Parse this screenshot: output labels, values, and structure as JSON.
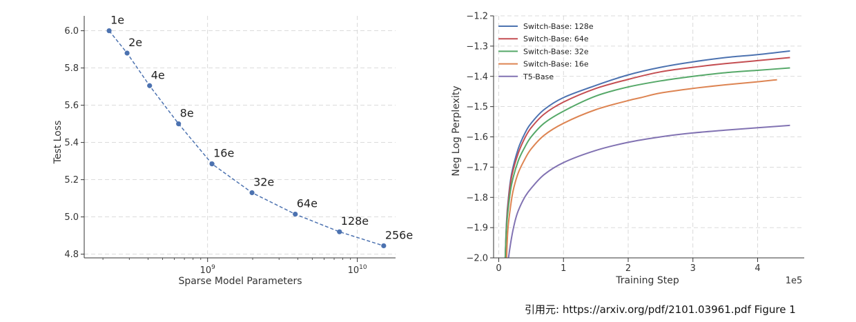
{
  "caption": "引用元: https://arxiv.org/pdf/2101.03961.pdf Figure 1",
  "chart_data": [
    {
      "type": "line",
      "xlabel": "Sparse Model Parameters",
      "ylabel": "Test Loss",
      "xscale": "log",
      "xlim": [
        150000000.0,
        18000000000.0
      ],
      "ylim": [
        4.78,
        6.08
      ],
      "yticks": [
        4.8,
        5.0,
        5.2,
        5.4,
        5.6,
        5.8,
        6.0
      ],
      "ytick_labels": [
        "4.8",
        "5.0",
        "5.2",
        "5.4",
        "5.6",
        "5.8",
        "6.0"
      ],
      "xticks": [
        1000000000.0,
        10000000000.0
      ],
      "xtick_labels": [
        {
          "base": "10",
          "exp": "9"
        },
        {
          "base": "10",
          "exp": "10"
        }
      ],
      "grid": true,
      "line_style": "dashed",
      "color": "#4c72b0",
      "points": [
        {
          "label": "1e",
          "x": 220000000.0,
          "y": 6.0
        },
        {
          "label": "2e",
          "x": 290000000.0,
          "y": 5.88
        },
        {
          "label": "4e",
          "x": 410000000.0,
          "y": 5.705
        },
        {
          "label": "8e",
          "x": 640000000.0,
          "y": 5.5
        },
        {
          "label": "16e",
          "x": 1070000000.0,
          "y": 5.285
        },
        {
          "label": "32e",
          "x": 1980000000.0,
          "y": 5.13
        },
        {
          "label": "64e",
          "x": 3850000000.0,
          "y": 5.015
        },
        {
          "label": "128e",
          "x": 7600000000.0,
          "y": 4.92
        },
        {
          "label": "256e",
          "x": 15000000000.0,
          "y": 4.845
        }
      ]
    },
    {
      "type": "line",
      "xlabel": "Training Step",
      "ylabel": "Neg Log Perplexity",
      "x_multiplier": "1e5",
      "xlim": [
        -0.08,
        4.72
      ],
      "ylim": [
        -2.0,
        -1.2
      ],
      "xticks": [
        0,
        1,
        2,
        3,
        4
      ],
      "xtick_labels": [
        "0",
        "1",
        "2",
        "3",
        "4"
      ],
      "yticks": [
        -2.0,
        -1.9,
        -1.8,
        -1.7,
        -1.6,
        -1.5,
        -1.4,
        -1.3,
        -1.2
      ],
      "ytick_labels": [
        "−2.0",
        "−1.9",
        "−1.8",
        "−1.7",
        "−1.6",
        "−1.5",
        "−1.4",
        "−1.3",
        "−1.2"
      ],
      "grid": true,
      "legend_position": "top-left",
      "series": [
        {
          "name": "Switch-Base: 128e",
          "color": "#4c72b0",
          "x": [
            0.1,
            0.12,
            0.15,
            0.2,
            0.3,
            0.4,
            0.5,
            0.7,
            1.0,
            1.5,
            2.0,
            2.5,
            3.0,
            3.5,
            4.0,
            4.5
          ],
          "y": [
            -2.0,
            -1.88,
            -1.8,
            -1.72,
            -1.64,
            -1.59,
            -1.555,
            -1.51,
            -1.47,
            -1.43,
            -1.395,
            -1.37,
            -1.352,
            -1.338,
            -1.328,
            -1.316
          ]
        },
        {
          "name": "Switch-Base: 64e",
          "color": "#c44e52",
          "x": [
            0.1,
            0.12,
            0.15,
            0.2,
            0.3,
            0.4,
            0.5,
            0.7,
            1.0,
            1.5,
            2.0,
            2.5,
            3.0,
            3.5,
            4.0,
            4.5
          ],
          "y": [
            -2.0,
            -1.89,
            -1.81,
            -1.73,
            -1.655,
            -1.605,
            -1.57,
            -1.525,
            -1.485,
            -1.44,
            -1.41,
            -1.385,
            -1.37,
            -1.358,
            -1.348,
            -1.338
          ]
        },
        {
          "name": "Switch-Base: 32e",
          "color": "#55a868",
          "x": [
            0.1,
            0.12,
            0.15,
            0.2,
            0.3,
            0.4,
            0.5,
            0.7,
            1.0,
            1.5,
            2.0,
            2.5,
            3.0,
            3.5,
            4.0,
            4.5
          ],
          "y": [
            -2.0,
            -1.9,
            -1.83,
            -1.755,
            -1.68,
            -1.635,
            -1.6,
            -1.555,
            -1.515,
            -1.465,
            -1.435,
            -1.415,
            -1.4,
            -1.388,
            -1.38,
            -1.372
          ]
        },
        {
          "name": "Switch-Base: 16e",
          "color": "#dd8452",
          "x": [
            0.12,
            0.14,
            0.17,
            0.22,
            0.3,
            0.4,
            0.5,
            0.7,
            1.0,
            1.5,
            2.0,
            2.2,
            2.5,
            3.0,
            3.5,
            4.0,
            4.3
          ],
          "y": [
            -2.0,
            -1.91,
            -1.85,
            -1.78,
            -1.72,
            -1.675,
            -1.64,
            -1.595,
            -1.555,
            -1.51,
            -1.48,
            -1.47,
            -1.455,
            -1.44,
            -1.428,
            -1.418,
            -1.411
          ]
        },
        {
          "name": "T5-Base",
          "color": "#8172b2",
          "x": [
            0.15,
            0.2,
            0.25,
            0.3,
            0.4,
            0.5,
            0.7,
            1.0,
            1.5,
            2.0,
            2.5,
            3.0,
            3.5,
            4.0,
            4.5
          ],
          "y": [
            -2.0,
            -1.93,
            -1.88,
            -1.845,
            -1.8,
            -1.77,
            -1.725,
            -1.685,
            -1.645,
            -1.618,
            -1.6,
            -1.587,
            -1.578,
            -1.57,
            -1.562
          ]
        }
      ]
    }
  ]
}
